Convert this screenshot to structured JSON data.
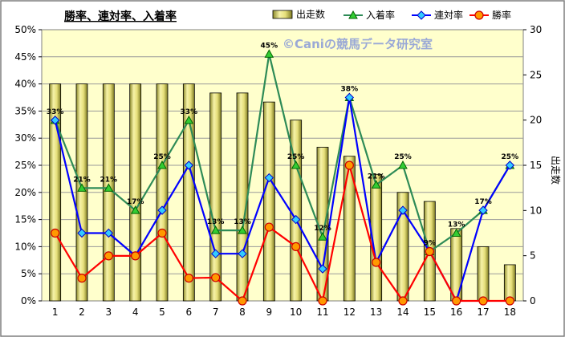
{
  "chart_data": {
    "type": "bar+line",
    "title": "勝率、連対率、入着率",
    "watermark": "©Caniの競馬データ研究室",
    "categories": [
      "1",
      "2",
      "3",
      "4",
      "5",
      "6",
      "7",
      "8",
      "9",
      "10",
      "11",
      "12",
      "13",
      "14",
      "15",
      "16",
      "17",
      "18"
    ],
    "bar_series": {
      "name": "出走数",
      "axis": "right",
      "values": [
        24,
        24,
        24,
        24,
        24,
        24,
        23,
        23,
        22,
        20,
        17,
        16,
        14,
        12,
        11,
        8,
        6,
        4
      ],
      "color": "#d8d26a"
    },
    "series": [
      {
        "name": "入着率",
        "axis": "left",
        "color": "#2e8b57",
        "marker": "triangle",
        "values": [
          33.3,
          20.8,
          20.8,
          16.7,
          25,
          33.3,
          13,
          13,
          45.5,
          25,
          11.8,
          37.5,
          21.4,
          25,
          9.1,
          12.5,
          16.7,
          25
        ]
      },
      {
        "name": "連対率",
        "axis": "left",
        "color": "#0000ff",
        "marker": "diamond",
        "values": [
          33.3,
          12.5,
          12.5,
          8.3,
          16.7,
          25,
          8.7,
          8.7,
          22.7,
          15,
          5.9,
          37.5,
          7.1,
          16.7,
          9.1,
          0,
          16.7,
          25
        ]
      },
      {
        "name": "勝率",
        "axis": "left",
        "color": "#ff0000",
        "marker": "circle",
        "values": [
          12.5,
          4.2,
          8.3,
          8.3,
          12.5,
          4.2,
          4.3,
          0,
          13.6,
          10,
          0,
          25,
          7.1,
          0,
          9.1,
          0,
          0,
          0
        ]
      }
    ],
    "data_labels": [
      "33%",
      "21%",
      "21%",
      "17%",
      "25%",
      "33%",
      "13%",
      "13%",
      "45%",
      "25%",
      "12%",
      "38%",
      "21%",
      "25%",
      "9%",
      "13%",
      "17%",
      "25%"
    ],
    "y_left": {
      "min": 0,
      "max": 50,
      "step": 5,
      "tick_labels": [
        "0%",
        "5%",
        "10%",
        "15%",
        "20%",
        "25%",
        "30%",
        "35%",
        "40%",
        "45%",
        "50%"
      ]
    },
    "y_right": {
      "label": "出走数",
      "min": 0,
      "max": 30,
      "step": 5,
      "tick_labels": [
        "0",
        "5",
        "10",
        "15",
        "20",
        "25",
        "30"
      ]
    },
    "grid": true,
    "legend_position": "top-right"
  }
}
